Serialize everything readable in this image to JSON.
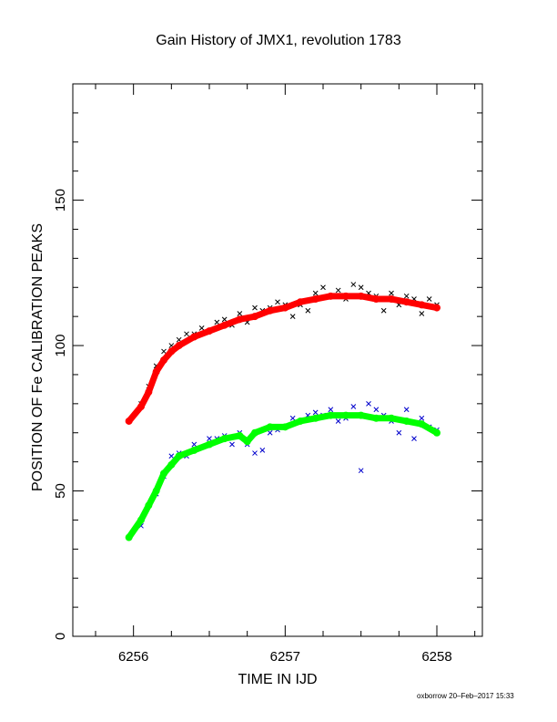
{
  "chart_data": {
    "type": "scatter",
    "title": "Gain History of JMX1, revolution 1783",
    "xlabel": "TIME IN IJD",
    "ylabel": "POSITION OF Fe CALIBRATION PEAKS",
    "xlim": [
      6255.6,
      6258.3
    ],
    "ylim": [
      0,
      190
    ],
    "x_ticks": [
      6256,
      6257,
      6258
    ],
    "y_ticks": [
      0,
      50,
      100,
      150
    ],
    "grid": false,
    "series": [
      {
        "color": "#000000",
        "marker": "x",
        "x": [
          6256.05,
          6256.1,
          6256.15,
          6256.2,
          6256.25,
          6256.3,
          6256.35,
          6256.4,
          6256.45,
          6256.5,
          6256.55,
          6256.6,
          6256.65,
          6256.7,
          6256.75,
          6256.8,
          6256.85,
          6256.9,
          6256.95,
          6257.0,
          6257.05,
          6257.1,
          6257.15,
          6257.2,
          6257.25,
          6257.3,
          6257.35,
          6257.4,
          6257.45,
          6257.5,
          6257.55,
          6257.6,
          6257.65,
          6257.7,
          6257.75,
          6257.8,
          6257.85,
          6257.9,
          6257.95,
          6258.0
        ],
        "y": [
          80,
          86,
          93,
          98,
          100,
          102,
          104,
          104,
          106,
          105,
          108,
          109,
          107,
          111,
          108,
          113,
          112,
          113,
          115,
          114,
          110,
          114,
          112,
          118,
          120,
          117,
          119,
          116,
          121,
          120,
          118,
          117,
          112,
          118,
          114,
          117,
          116,
          111,
          116,
          114
        ]
      },
      {
        "color": "#ff0000",
        "marker": "dot",
        "x": [
          6255.97,
          6256.05,
          6256.1,
          6256.15,
          6256.2,
          6256.25,
          6256.3,
          6256.4,
          6256.5,
          6256.6,
          6256.7,
          6256.8,
          6256.9,
          6257.0,
          6257.1,
          6257.2,
          6257.3,
          6257.4,
          6257.5,
          6257.6,
          6257.7,
          6257.8,
          6257.9,
          6258.0
        ],
        "y": [
          74,
          79,
          84,
          91,
          95,
          98,
          100,
          103,
          105,
          107,
          109,
          110,
          112,
          113,
          115,
          116,
          117,
          117,
          117,
          116,
          116,
          115,
          114,
          113
        ]
      },
      {
        "color": "#0000cc",
        "marker": "x",
        "x": [
          6256.05,
          6256.1,
          6256.15,
          6256.2,
          6256.25,
          6256.3,
          6256.35,
          6256.4,
          6256.45,
          6256.5,
          6256.55,
          6256.6,
          6256.65,
          6256.7,
          6256.75,
          6256.8,
          6256.85,
          6256.9,
          6256.95,
          6257.0,
          6257.05,
          6257.1,
          6257.15,
          6257.2,
          6257.25,
          6257.3,
          6257.35,
          6257.4,
          6257.45,
          6257.5,
          6257.55,
          6257.6,
          6257.65,
          6257.7,
          6257.75,
          6257.8,
          6257.85,
          6257.9,
          6257.95,
          6258.0
        ],
        "y": [
          38,
          45,
          49,
          55,
          62,
          63,
          62,
          66,
          65,
          68,
          68,
          69,
          66,
          70,
          66,
          63,
          64,
          70,
          71,
          72,
          75,
          74,
          76,
          77,
          76,
          78,
          74,
          75,
          79,
          57,
          80,
          78,
          76,
          74,
          70,
          78,
          68,
          75,
          72,
          71
        ]
      },
      {
        "color": "#00ff00",
        "marker": "dot",
        "x": [
          6255.97,
          6256.05,
          6256.1,
          6256.15,
          6256.2,
          6256.25,
          6256.3,
          6256.4,
          6256.5,
          6256.6,
          6256.7,
          6256.75,
          6256.8,
          6256.9,
          6257.0,
          6257.1,
          6257.2,
          6257.3,
          6257.4,
          6257.5,
          6257.6,
          6257.7,
          6257.8,
          6257.9,
          6258.0
        ],
        "y": [
          34,
          40,
          45,
          50,
          56,
          59,
          62,
          64,
          66,
          68,
          69,
          67,
          70,
          72,
          72,
          74,
          75,
          76,
          76,
          76,
          75,
          75,
          74,
          73,
          70
        ]
      }
    ]
  },
  "credit": "oxborrow 20–Feb–2017 15:33"
}
